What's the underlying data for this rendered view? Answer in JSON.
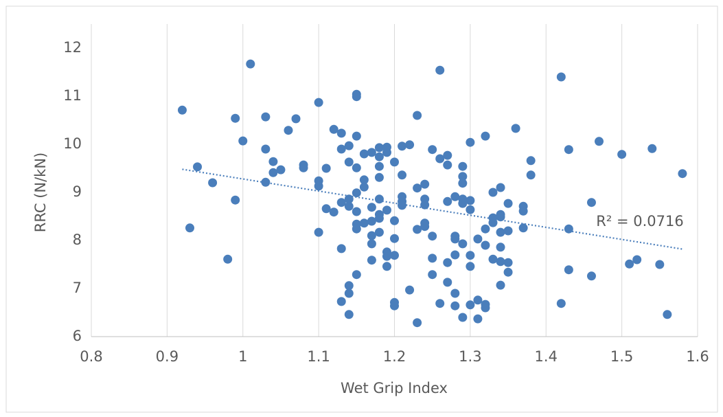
{
  "chart_data": {
    "type": "scatter",
    "xlabel": "Wet Grip Index",
    "ylabel": "RRC (N/kN)",
    "annotation": "R² = 0.0716",
    "color": "#4a7ebb",
    "xlim": [
      0.8,
      1.6
    ],
    "ylim": [
      6,
      12.5
    ],
    "xticks": [
      0.8,
      0.9,
      1,
      1.1,
      1.2,
      1.3,
      1.4,
      1.5,
      1.6
    ],
    "yticks": [
      6,
      7,
      8,
      9,
      10,
      11,
      12
    ],
    "grid": "x",
    "x": [
      0.92,
      0.93,
      0.94,
      0.96,
      0.98,
      0.99,
      0.99,
      1.0,
      1.01,
      1.03,
      1.03,
      1.03,
      1.04,
      1.04,
      1.05,
      1.06,
      1.07,
      1.08,
      1.08,
      1.1,
      1.1,
      1.1,
      1.1,
      1.11,
      1.11,
      1.12,
      1.12,
      1.13,
      1.13,
      1.13,
      1.13,
      1.13,
      1.14,
      1.14,
      1.14,
      1.14,
      1.14,
      1.14,
      1.14,
      1.15,
      1.15,
      1.15,
      1.15,
      1.15,
      1.15,
      1.15,
      1.15,
      1.15,
      1.16,
      1.16,
      1.16,
      1.16,
      1.17,
      1.17,
      1.17,
      1.17,
      1.17,
      1.17,
      1.18,
      1.18,
      1.18,
      1.18,
      1.18,
      1.18,
      1.18,
      1.18,
      1.19,
      1.19,
      1.19,
      1.19,
      1.19,
      1.19,
      1.2,
      1.2,
      1.2,
      1.2,
      1.2,
      1.2,
      1.21,
      1.21,
      1.21,
      1.21,
      1.21,
      1.22,
      1.22,
      1.23,
      1.23,
      1.23,
      1.23,
      1.24,
      1.24,
      1.24,
      1.24,
      1.24,
      1.25,
      1.25,
      1.25,
      1.25,
      1.26,
      1.26,
      1.26,
      1.27,
      1.27,
      1.27,
      1.27,
      1.27,
      1.28,
      1.28,
      1.28,
      1.28,
      1.28,
      1.28,
      1.29,
      1.29,
      1.29,
      1.29,
      1.29,
      1.29,
      1.29,
      1.3,
      1.3,
      1.3,
      1.3,
      1.3,
      1.3,
      1.31,
      1.31,
      1.31,
      1.32,
      1.32,
      1.32,
      1.32,
      1.32,
      1.33,
      1.33,
      1.33,
      1.33,
      1.34,
      1.34,
      1.34,
      1.34,
      1.34,
      1.34,
      1.34,
      1.35,
      1.35,
      1.35,
      1.35,
      1.36,
      1.37,
      1.37,
      1.37,
      1.38,
      1.38,
      1.42,
      1.42,
      1.43,
      1.43,
      1.43,
      1.46,
      1.46,
      1.47,
      1.5,
      1.51,
      1.52,
      1.54,
      1.55,
      1.56,
      1.58
    ],
    "y": [
      10.71,
      8.26,
      9.53,
      9.2,
      7.61,
      10.54,
      8.84,
      10.07,
      11.67,
      10.57,
      9.9,
      9.21,
      9.64,
      9.41,
      9.47,
      10.29,
      10.53,
      9.57,
      9.51,
      10.87,
      9.24,
      9.13,
      8.17,
      9.5,
      8.66,
      10.31,
      8.59,
      10.23,
      9.9,
      8.79,
      7.83,
      6.73,
      9.97,
      9.63,
      8.86,
      8.71,
      7.06,
      6.9,
      6.46,
      11.04,
      10.99,
      10.17,
      9.51,
      8.99,
      8.6,
      8.34,
      8.24,
      7.29,
      9.8,
      9.26,
      9.11,
      8.36,
      9.83,
      8.69,
      8.4,
      8.1,
      7.93,
      7.59,
      9.93,
      9.74,
      9.54,
      9.31,
      8.86,
      8.54,
      8.46,
      8.17,
      9.94,
      9.83,
      8.63,
      7.76,
      7.67,
      7.46,
      9.63,
      8.41,
      8.04,
      7.69,
      6.71,
      6.64,
      9.96,
      9.36,
      8.91,
      8.81,
      8.73,
      9.99,
      6.97,
      10.6,
      9.09,
      8.23,
      6.29,
      9.17,
      8.86,
      8.74,
      8.36,
      8.29,
      9.89,
      8.09,
      7.63,
      7.29,
      11.54,
      9.7,
      6.69,
      9.77,
      9.57,
      8.81,
      7.54,
      7.13,
      8.91,
      8.09,
      8.03,
      7.7,
      6.9,
      6.64,
      9.54,
      9.33,
      9.19,
      8.86,
      8.77,
      7.93,
      6.4,
      10.04,
      8.83,
      8.64,
      7.69,
      7.46,
      6.66,
      8.03,
      6.76,
      6.37,
      10.17,
      8.24,
      7.9,
      6.67,
      6.6,
      9.0,
      8.47,
      8.37,
      7.61,
      9.1,
      8.54,
      8.49,
      8.17,
      7.86,
      7.56,
      7.07,
      8.77,
      8.2,
      7.54,
      7.34,
      10.33,
      8.71,
      8.61,
      8.26,
      9.66,
      9.36,
      11.4,
      6.69,
      9.89,
      8.24,
      7.39,
      8.79,
      7.26,
      10.06,
      9.79,
      7.51,
      7.6,
      9.91,
      7.5,
      6.46,
      9.39
    ],
    "trendline": {
      "x": [
        0.92,
        1.58
      ],
      "y": [
        9.48,
        7.82
      ]
    }
  }
}
